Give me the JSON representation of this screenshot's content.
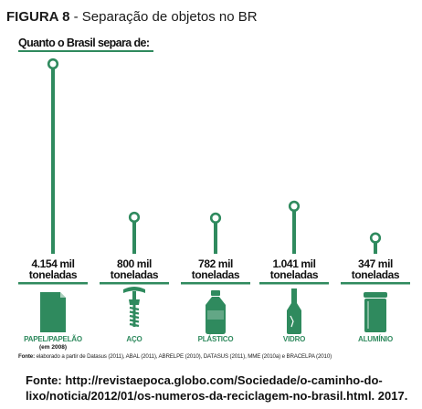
{
  "figure": {
    "number": "FIGURA 8",
    "title": " - Separação de objetos no BR"
  },
  "chart_data": {
    "type": "bar",
    "title": "Quanto o Brasil separa de:",
    "categories": [
      "PAPEL/PAPELÃO",
      "AÇO",
      "PLÁSTICO",
      "VIDRO",
      "ALUMÍNIO"
    ],
    "category_notes": [
      "(em 2008)",
      "",
      "",
      "",
      ""
    ],
    "icons": [
      "paper-icon",
      "corkscrew-icon",
      "plastic-bottle-icon",
      "glass-bottle-icon",
      "can-icon"
    ],
    "series": [
      {
        "values": [
          4154,
          800,
          782,
          1041,
          347
        ],
        "value_labels": [
          "4.154 mil",
          "800 mil",
          "782 mil",
          "1.041 mil",
          "347 mil"
        ],
        "unit_labels": [
          "toneladas",
          "toneladas",
          "toneladas",
          "toneladas",
          "toneladas"
        ]
      }
    ],
    "unit": "mil toneladas",
    "color": "#2f8a5e",
    "ylim": [
      0,
      4154
    ]
  },
  "notes": {
    "fonte_label": "Fonte:",
    "fonte_text": " elaborado a partir de Datasus (2011), ABAL (2011), ABRELPE (2010), DATASUS (2011), MME (2010a) e BRACELPA (2010)"
  },
  "source": "Fonte: http://revistaepoca.globo.com/Sociedade/o-caminho-do-lixo/noticia/2012/01/os-numeros-da-reciclagem-no-brasil.html. 2017."
}
